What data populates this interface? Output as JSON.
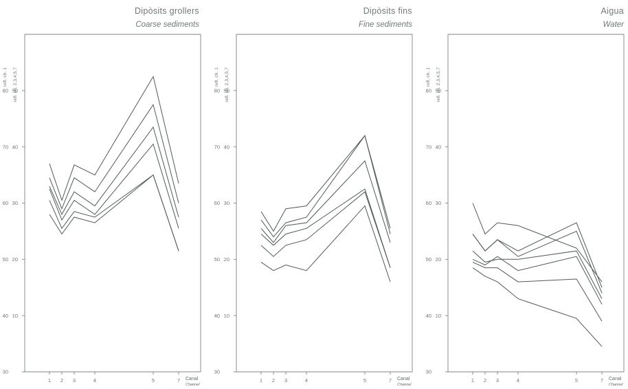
{
  "chart_data": [
    {
      "type": "line",
      "title": "Dipòsits grollers",
      "subtitle": "Coarse sediments",
      "ylabel_outer": "refl. ch. 1",
      "ylabel_inner": "refl. ch. 2,3,4,5,7",
      "xlabel": "Canal",
      "xlabel_sub": "Channel",
      "x": [
        1,
        2,
        3,
        4,
        5,
        7
      ],
      "x_tick_labels": [
        "1",
        "2",
        "3",
        "4",
        "5",
        "7"
      ],
      "ylim_outer": [
        30,
        90
      ],
      "yticks_outer": [
        30,
        40,
        50,
        60,
        70,
        80
      ],
      "yticks_inner": [
        10,
        20,
        30,
        40,
        50
      ],
      "grid": false,
      "series": [
        {
          "values": [
            37,
            30.5,
            36.8,
            35,
            52.5,
            33.5
          ]
        },
        {
          "values": [
            34.5,
            29,
            34.5,
            32,
            47.5,
            30
          ]
        },
        {
          "values": [
            33,
            28,
            32,
            29.5,
            43.5,
            27.5
          ]
        },
        {
          "values": [
            32.5,
            27,
            30.5,
            28,
            40.5,
            25.5
          ]
        },
        {
          "values": [
            30.5,
            25.5,
            28.5,
            27.5,
            35,
            21.5
          ]
        },
        {
          "values": [
            28,
            24.5,
            27.5,
            26.5,
            35,
            21.5
          ]
        }
      ]
    },
    {
      "type": "line",
      "title": "Dipòsits fins",
      "subtitle": "Fine sediments",
      "ylabel_outer": "refl. ch. 1",
      "ylabel_inner": "refl. ch. 2,3,4,5,7",
      "xlabel": "Canal",
      "xlabel_sub": "Channel",
      "x": [
        1,
        2,
        3,
        4,
        5,
        7
      ],
      "x_tick_labels": [
        "1",
        "2",
        "3",
        "4",
        "5",
        "7"
      ],
      "ylim_outer": [
        30,
        90
      ],
      "yticks_outer": [
        30,
        40,
        50,
        60,
        70,
        80
      ],
      "yticks_inner": [
        10,
        20,
        30,
        40,
        50
      ],
      "grid": false,
      "series": [
        {
          "values": [
            28.5,
            25,
            29,
            29.5,
            42,
            25.5
          ]
        },
        {
          "values": [
            27,
            24,
            26.5,
            27.5,
            42,
            24.5
          ]
        },
        {
          "values": [
            25.5,
            23,
            26,
            26.5,
            37.5,
            23
          ]
        },
        {
          "values": [
            24.5,
            22.5,
            24.5,
            25.5,
            32.5,
            18.5
          ]
        },
        {
          "values": [
            22.5,
            20.5,
            22.5,
            23.5,
            32,
            18.5
          ]
        },
        {
          "values": [
            19.5,
            18,
            19,
            18,
            29.5,
            16
          ]
        }
      ]
    },
    {
      "type": "line",
      "title": "Aigua",
      "subtitle": "Water",
      "ylabel_outer": "refl. ch. 1",
      "ylabel_inner": "refl. ch. 2,3,4,5,7",
      "xlabel": "Canal",
      "xlabel_sub": "Channel",
      "x": [
        1,
        2,
        3,
        4,
        5,
        7
      ],
      "x_tick_labels": [
        "1",
        "2",
        "3",
        "4",
        "5",
        "7"
      ],
      "ylim_outer": [
        30,
        90
      ],
      "yticks_outer": [
        30,
        40,
        50,
        60,
        70,
        80
      ],
      "yticks_inner": [
        10,
        20,
        30,
        40,
        50
      ],
      "grid": false,
      "series": [
        {
          "values": [
            30,
            24.5,
            26.5,
            26,
            22,
            16
          ]
        },
        {
          "values": [
            24.5,
            21.5,
            23.5,
            21.5,
            26.5,
            15
          ]
        },
        {
          "values": [
            24.5,
            21.5,
            23.5,
            20.5,
            25,
            14
          ]
        },
        {
          "values": [
            21.5,
            19.5,
            20,
            20,
            21.5,
            13
          ]
        },
        {
          "values": [
            20,
            19,
            20.5,
            18,
            20.5,
            12
          ]
        },
        {
          "values": [
            19.5,
            18.5,
            18.5,
            16,
            16.5,
            9
          ]
        },
        {
          "values": [
            18.5,
            17,
            16,
            13,
            9.5,
            4.5
          ]
        }
      ]
    }
  ],
  "colors": {
    "stroke": "#4f5957",
    "text": "#6c7674",
    "title": "#6f7a78"
  }
}
